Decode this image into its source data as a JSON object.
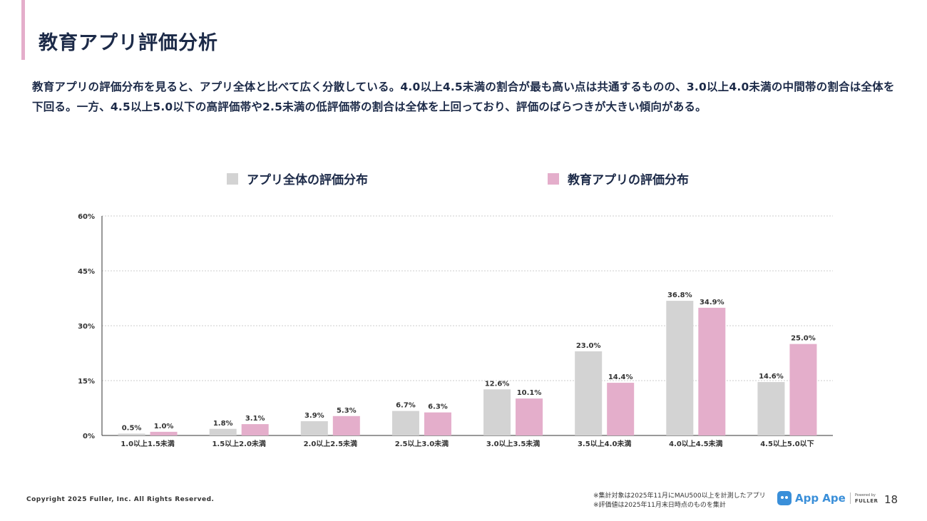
{
  "title": "教育アプリ評価分析",
  "description": "教育アプリの評価分布を見ると、アプリ全体と比べて広く分散している。4.0以上4.5未満の割合が最も高い点は共通するものの、3.0以上4.0未満の中間帯の割合は全体を下回る。一方、4.5以上5.0以下の高評価帯や2.5未満の低評価帯の割合は全体を上回っており、評価のばらつきが大きい傾向がある。",
  "colors": {
    "accent": "#e4aecb",
    "series_all": "#d3d3d3",
    "series_edu": "#e4aecb",
    "text": "#1c2a48"
  },
  "chart_data": {
    "type": "bar",
    "categories": [
      "1.0以上1.5未満",
      "1.5以上2.0未満",
      "2.0以上2.5未満",
      "2.5以上3.0未満",
      "3.0以上3.5未満",
      "3.5以上4.0未満",
      "4.0以上4.5未満",
      "4.5以上5.0以下"
    ],
    "series": [
      {
        "name": "アプリ全体の評価分布",
        "values": [
          0.5,
          1.8,
          3.9,
          6.7,
          12.6,
          23.0,
          36.8,
          14.6
        ],
        "labels": [
          "0.5%",
          "1.8%",
          "3.9%",
          "6.7%",
          "12.6%",
          "23.0%",
          "36.8%",
          "14.6%"
        ]
      },
      {
        "name": "教育アプリの評価分布",
        "values": [
          1.0,
          3.1,
          5.3,
          6.3,
          10.1,
          14.4,
          34.9,
          25.0
        ],
        "labels": [
          "1.0%",
          "3.1%",
          "5.3%",
          "6.3%",
          "10.1%",
          "14.4%",
          "34.9%",
          "25.0%"
        ]
      }
    ],
    "ylim": [
      0,
      60
    ],
    "yticks": [
      0,
      15,
      30,
      45,
      60
    ],
    "ytick_labels": [
      "0%",
      "15%",
      "30%",
      "45%",
      "60%"
    ],
    "grid": true,
    "legend_position": "top"
  },
  "footer": {
    "copyright": "Copyright 2025 Fuller, Inc. All Rights Reserved.",
    "note1": "※集計対象は2025年11月にMAU500以上を計測したアプリ",
    "note2": "※評価値は2025年11月末日時点のものを集計",
    "logo_text": "App Ape",
    "powered_by": "Powered by",
    "fuller": "FULLER",
    "page_number": "18"
  }
}
